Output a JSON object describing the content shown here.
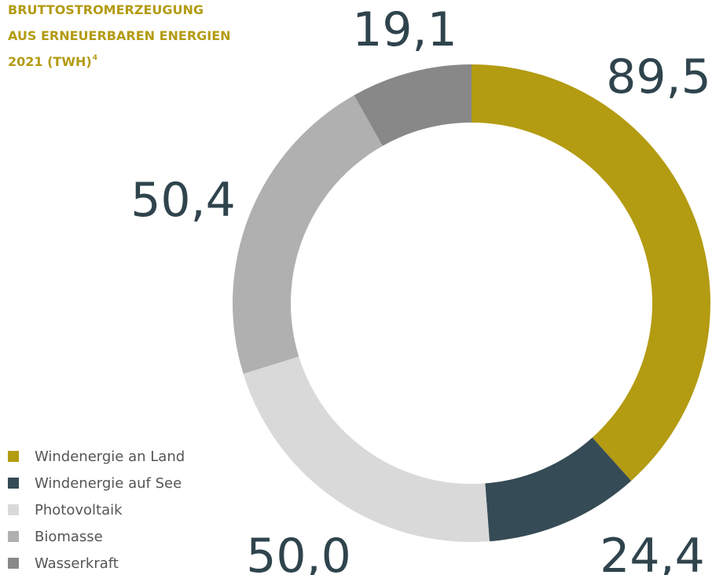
{
  "chart_data": {
    "type": "donut",
    "title": [
      "BRUTTOSTROMERZEUGUNG",
      "AUS ERNEUERBAREN ENERGIEN",
      "2021 (TWH)"
    ],
    "title_footnote": "4",
    "categories": [
      "Windenergie an Land",
      "Windenergie auf See",
      "Photovoltaik",
      "Biomasse",
      "Wasserkraft"
    ],
    "values": [
      89.5,
      24.4,
      50.0,
      50.4,
      19.1
    ],
    "value_labels": [
      "89,5",
      "24,4",
      "50,0",
      "50,4",
      "19,1"
    ],
    "colors": [
      "#b39b12",
      "#354b55",
      "#d9d9d9",
      "#b0b0b0",
      "#888888"
    ]
  }
}
